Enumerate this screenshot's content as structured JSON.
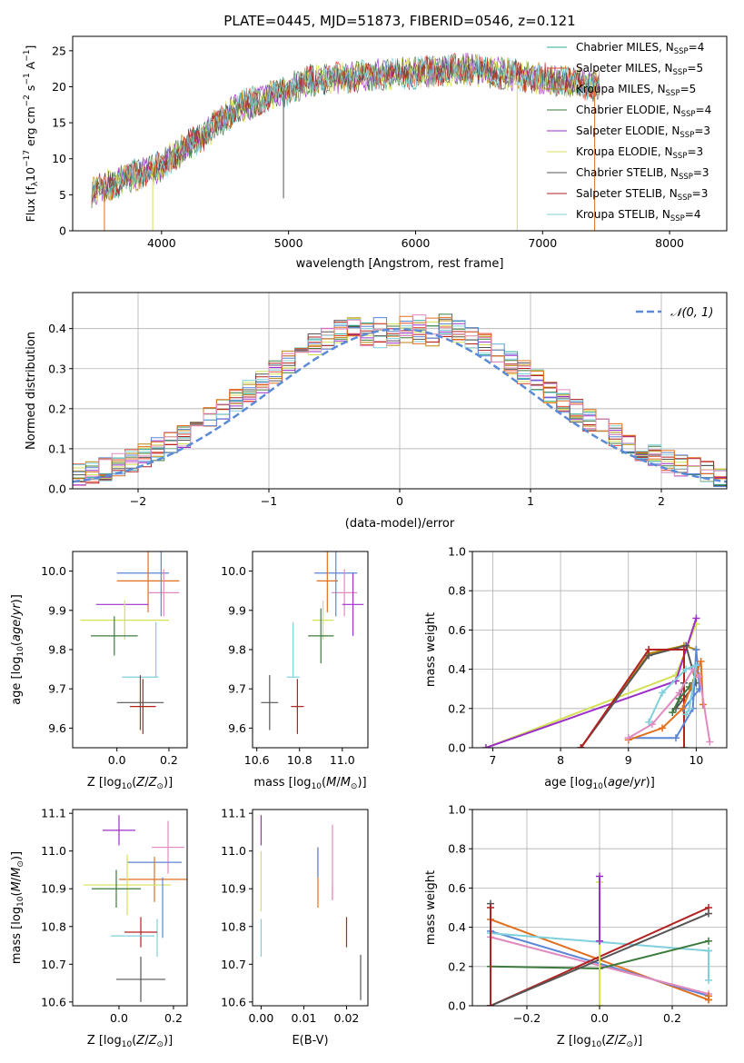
{
  "title": "PLATE=0445, MJD=51873, FIBERID=0546, z=0.121",
  "colors": {
    "chabrier_miles": "#2ca89a",
    "salpeter_miles": "#e24a33",
    "kroupa_miles": "#b8860b",
    "chabrier_elodie": "#3d7a3d",
    "salpeter_elodie": "#9b30c8",
    "kroupa_elodie": "#d4e157",
    "chabrier_stelib": "#555555",
    "salpeter_stelib": "#b22222",
    "kroupa_stelib": "#80d0dc",
    "c_blue": "#5b85d6",
    "c_orange": "#e07020",
    "c_pink": "#e08ac0",
    "c_green": "#3d7a3d",
    "c_purple": "#9b30c8",
    "c_yellow": "#d4e157",
    "c_grey": "#555555",
    "c_red": "#b22222",
    "c_cyan": "#80d0dc",
    "normal": "#5b8bd6"
  },
  "chart_data": [
    {
      "id": "spectrum",
      "type": "line",
      "xlabel": "wavelength [Angstrom, rest frame]",
      "ylabel": "Flux [f",
      "xlim": [
        3300,
        8450
      ],
      "ylim": [
        0,
        27
      ],
      "xticks": [
        4000,
        5000,
        6000,
        7000,
        8000
      ],
      "yticks": [
        0,
        5,
        10,
        15,
        20,
        25
      ],
      "x_range": [
        3450,
        7450
      ],
      "dips": [
        {
          "x": 3550,
          "ymin": 0.0
        },
        {
          "x": 3930,
          "ymin": 0.0
        },
        {
          "x": 4960,
          "ymin": 4.5
        },
        {
          "x": 6800,
          "ymin": 0.0
        },
        {
          "x": 7410,
          "ymin": 0.0
        }
      ],
      "legend_position": "top-right",
      "legend": [
        {
          "label": "Chabrier MILES, N",
          "n": "4",
          "color": "#2ca89a"
        },
        {
          "label": "Salpeter MILES, N",
          "n": "5",
          "color": "#e24a33"
        },
        {
          "label": "Kroupa MILES, N",
          "n": "5",
          "color": "#b8860b"
        },
        {
          "label": "Chabrier ELODIE, N",
          "n": "4",
          "color": "#3d7a3d"
        },
        {
          "label": "Salpeter ELODIE, N",
          "n": "3",
          "color": "#9b30c8"
        },
        {
          "label": "Kroupa ELODIE, N",
          "n": "3",
          "color": "#d4e157"
        },
        {
          "label": "Chabrier STELIB, N",
          "n": "3",
          "color": "#555555"
        },
        {
          "label": "Salpeter STELIB, N",
          "n": "3",
          "color": "#b22222"
        },
        {
          "label": "Kroupa STELIB, N",
          "n": "4",
          "color": "#80d0dc"
        }
      ],
      "legend_sub": "SSP"
    },
    {
      "id": "residuals",
      "type": "histogram",
      "xlabel": "(data-model)/error",
      "ylabel": "Normed distribution",
      "xlim": [
        -2.5,
        2.5
      ],
      "ylim": [
        0,
        0.49
      ],
      "xticks": [
        -2,
        -1,
        0,
        1,
        2
      ],
      "yticks": [
        0.0,
        0.1,
        0.2,
        0.3,
        0.4
      ],
      "grid": true,
      "bin_width": 0.1,
      "legend": "𝒩(0, 1)",
      "legend_position": "top-right"
    },
    {
      "id": "age_vs_Z",
      "type": "errorbar",
      "xlabel": "Z [log",
      "ylabel": "age  [log",
      "xlim": [
        -0.17,
        0.27
      ],
      "ylim": [
        9.55,
        10.05
      ],
      "xticks": [
        0.0,
        0.2
      ],
      "yticks": [
        9.6,
        9.7,
        9.8,
        9.9,
        10.0
      ],
      "points": [
        {
          "x": 0.1,
          "y": 9.995,
          "xe": 0.1,
          "ye": 0.0,
          "c": "#5b85d6"
        },
        {
          "x": 0.12,
          "y": 9.975,
          "xe": 0.12,
          "ye": 0.08,
          "c": "#e07020"
        },
        {
          "x": 0.18,
          "y": 9.945,
          "xe": 0.06,
          "ye": 0.06,
          "c": "#e08ac0"
        },
        {
          "x": 0.17,
          "y": 9.975,
          "xe": 0.0,
          "ye": 0.09,
          "c": "#5b85d6"
        },
        {
          "x": 0.02,
          "y": 9.915,
          "xe": 0.1,
          "ye": 0.0,
          "c": "#9b30c8"
        },
        {
          "x": 0.03,
          "y": 9.875,
          "xe": 0.17,
          "ye": 0.05,
          "c": "#d4e157"
        },
        {
          "x": -0.01,
          "y": 9.835,
          "xe": 0.09,
          "ye": 0.05,
          "c": "#3d7a3d"
        },
        {
          "x": 0.15,
          "y": 9.8,
          "xe": 0.0,
          "ye": 0.07,
          "c": "#80d0dc"
        },
        {
          "x": 0.09,
          "y": 9.73,
          "xe": 0.07,
          "ye": 0.0,
          "c": "#80d0dc"
        },
        {
          "x": 0.09,
          "y": 9.665,
          "xe": 0.09,
          "ye": 0.07,
          "c": "#555555"
        },
        {
          "x": 0.1,
          "y": 9.655,
          "xe": 0.05,
          "ye": 0.07,
          "c": "#b22222"
        }
      ]
    },
    {
      "id": "age_vs_mass",
      "type": "errorbar",
      "xlabel": "mass [log",
      "ylabel": "",
      "xlim": [
        10.58,
        11.12
      ],
      "ylim": [
        9.55,
        10.05
      ],
      "xticks": [
        10.6,
        10.8,
        11.0
      ],
      "yticks": [
        9.6,
        9.7,
        9.8,
        9.9,
        10.0
      ],
      "points": [
        {
          "x": 10.97,
          "y": 9.995,
          "xe": 0.1,
          "ye": 0.0,
          "c": "#5b85d6"
        },
        {
          "x": 10.93,
          "y": 9.975,
          "xe": 0.05,
          "ye": 0.08,
          "c": "#e07020"
        },
        {
          "x": 11.01,
          "y": 9.945,
          "xe": 0.06,
          "ye": 0.06,
          "c": "#e08ac0"
        },
        {
          "x": 10.97,
          "y": 9.975,
          "xe": 0.0,
          "ye": 0.09,
          "c": "#5b85d6"
        },
        {
          "x": 11.05,
          "y": 9.915,
          "xe": 0.05,
          "ye": 0.08,
          "c": "#9b30c8"
        },
        {
          "x": 10.91,
          "y": 9.875,
          "xe": 0.05,
          "ye": 0.05,
          "c": "#d4e157"
        },
        {
          "x": 10.9,
          "y": 9.835,
          "xe": 0.06,
          "ye": 0.07,
          "c": "#3d7a3d"
        },
        {
          "x": 10.77,
          "y": 9.8,
          "xe": 0.0,
          "ye": 0.07,
          "c": "#80d0dc"
        },
        {
          "x": 10.77,
          "y": 9.73,
          "xe": 0.03,
          "ye": 0.0,
          "c": "#80d0dc"
        },
        {
          "x": 10.66,
          "y": 9.665,
          "xe": 0.04,
          "ye": 0.07,
          "c": "#555555"
        },
        {
          "x": 10.79,
          "y": 9.655,
          "xe": 0.03,
          "ye": 0.07,
          "c": "#b22222"
        }
      ]
    },
    {
      "id": "mass_weight_vs_age",
      "type": "line",
      "xlabel": "age  [log",
      "ylabel": "mass weight",
      "xlim": [
        6.7,
        10.45
      ],
      "ylim": [
        0.0,
        1.0
      ],
      "xticks": [
        7,
        8,
        9,
        10
      ],
      "yticks": [
        0.0,
        0.2,
        0.4,
        0.6,
        0.8,
        1.0
      ],
      "grid": true,
      "series": [
        {
          "c": "#b8860b",
          "x": [
            8.3,
            9.3,
            9.82,
            10.0
          ],
          "y": [
            0.0,
            0.48,
            0.52,
            0.5
          ]
        },
        {
          "c": "#d4e157",
          "x": [
            6.9,
            9.7,
            10.0
          ],
          "y": [
            0.0,
            0.37,
            0.63
          ]
        },
        {
          "c": "#9b30c8",
          "x": [
            6.9,
            9.7,
            10.0
          ],
          "y": [
            0.0,
            0.34,
            0.66
          ]
        },
        {
          "c": "#555555",
          "x": [
            8.3,
            9.3,
            9.85,
            10.0,
            9.7,
            9.82
          ],
          "y": [
            0.0,
            0.47,
            0.52,
            0.33,
            0.2,
            0.33
          ]
        },
        {
          "c": "#b22222",
          "x": [
            8.3,
            9.3,
            9.82,
            9.82
          ],
          "y": [
            0.0,
            0.5,
            0.5,
            0.0
          ]
        },
        {
          "c": "#3d7a3d",
          "x": [
            9.65,
            9.75,
            9.9,
            9.95
          ],
          "y": [
            0.18,
            0.25,
            0.31,
            0.33
          ]
        },
        {
          "c": "#5b85d6",
          "x": [
            9.0,
            9.7,
            9.95,
            10.0,
            10.05,
            9.82
          ],
          "y": [
            0.05,
            0.05,
            0.2,
            0.5,
            0.3,
            0.2
          ]
        },
        {
          "c": "#e07020",
          "x": [
            9.0,
            9.5,
            9.8,
            10.0,
            10.07,
            10.1
          ],
          "y": [
            0.04,
            0.1,
            0.2,
            0.38,
            0.44,
            0.22
          ]
        },
        {
          "c": "#e08ac0",
          "x": [
            9.0,
            9.35,
            9.75,
            9.95,
            10.05,
            10.2
          ],
          "y": [
            0.05,
            0.12,
            0.28,
            0.4,
            0.36,
            0.03
          ]
        },
        {
          "c": "#80d0dc",
          "x": [
            9.3,
            9.5,
            9.85,
            10.0,
            9.9,
            9.85
          ],
          "y": [
            0.13,
            0.28,
            0.4,
            0.42,
            0.2,
            0.17
          ]
        }
      ]
    },
    {
      "id": "mass_vs_Z",
      "type": "errorbar",
      "xlabel": "Z [log",
      "ylabel": "mass [log",
      "xlim": [
        -0.17,
        0.25
      ],
      "ylim": [
        10.59,
        11.11
      ],
      "xticks": [
        0.0,
        0.2
      ],
      "yticks": [
        10.6,
        10.7,
        10.8,
        10.9,
        11.0,
        11.1
      ],
      "points": [
        {
          "x": 0.0,
          "y": 11.055,
          "xe": 0.06,
          "ye": 0.04,
          "c": "#9b30c8"
        },
        {
          "x": 0.18,
          "y": 11.01,
          "xe": 0.06,
          "ye": 0.07,
          "c": "#e08ac0"
        },
        {
          "x": 0.13,
          "y": 10.97,
          "xe": 0.1,
          "ye": 0.0,
          "c": "#5b85d6"
        },
        {
          "x": 0.13,
          "y": 10.925,
          "xe": 0.13,
          "ye": 0.06,
          "c": "#e07020"
        },
        {
          "x": 0.03,
          "y": 10.91,
          "xe": 0.16,
          "ye": 0.08,
          "c": "#d4e157"
        },
        {
          "x": -0.01,
          "y": 10.9,
          "xe": 0.09,
          "ye": 0.05,
          "c": "#3d7a3d"
        },
        {
          "x": 0.16,
          "y": 10.85,
          "xe": 0.0,
          "ye": 0.08,
          "c": "#5b85d6"
        },
        {
          "x": 0.14,
          "y": 10.77,
          "xe": 0.0,
          "ye": 0.05,
          "c": "#80d0dc"
        },
        {
          "x": 0.08,
          "y": 10.785,
          "xe": 0.06,
          "ye": 0.04,
          "c": "#b22222"
        },
        {
          "x": 0.05,
          "y": 10.775,
          "xe": 0.08,
          "ye": 0.0,
          "c": "#80d0dc"
        },
        {
          "x": 0.08,
          "y": 10.66,
          "xe": 0.09,
          "ye": 0.06,
          "c": "#555555"
        }
      ]
    },
    {
      "id": "mass_vs_ebv",
      "type": "errorbar",
      "xlabel": "E(B-V)",
      "ylabel": "",
      "xlim": [
        -0.002,
        0.025
      ],
      "ylim": [
        10.59,
        11.11
      ],
      "xticks": [
        0.0,
        0.01,
        0.02
      ],
      "yticks": [
        10.6,
        10.7,
        10.8,
        10.9,
        11.0,
        11.1
      ],
      "points": [
        {
          "x": 0.0,
          "y": 11.055,
          "xe": 0,
          "ye": 0.04,
          "c": "#9b30c8"
        },
        {
          "x": 0.0,
          "y": 10.92,
          "xe": 0,
          "ye": 0.08,
          "c": "#d4e157"
        },
        {
          "x": 0.0,
          "y": 10.77,
          "xe": 0,
          "ye": 0.05,
          "c": "#80d0dc"
        },
        {
          "x": 0.0133,
          "y": 10.93,
          "xe": 0,
          "ye": 0.08,
          "c": "#e07020"
        },
        {
          "x": 0.0133,
          "y": 10.97,
          "xe": 0,
          "ye": 0.04,
          "c": "#5b85d6"
        },
        {
          "x": 0.0167,
          "y": 10.97,
          "xe": 0,
          "ye": 0.1,
          "c": "#e08ac0"
        },
        {
          "x": 0.0167,
          "y": 10.89,
          "xe": 0,
          "ye": 0.02,
          "c": "#e08ac0"
        },
        {
          "x": 0.02,
          "y": 10.785,
          "xe": 0,
          "ye": 0.04,
          "c": "#b22222"
        },
        {
          "x": 0.0233,
          "y": 10.665,
          "xe": 0,
          "ye": 0.06,
          "c": "#555555"
        }
      ]
    },
    {
      "id": "mass_weight_vs_Z",
      "type": "line",
      "xlabel": "Z [log",
      "ylabel": "mass weight",
      "xlim": [
        -0.35,
        0.35
      ],
      "ylim": [
        0.0,
        1.0
      ],
      "xticks": [
        -0.2,
        0.0,
        0.2
      ],
      "yticks": [
        0.0,
        0.2,
        0.4,
        0.6,
        0.8,
        1.0
      ],
      "grid": true,
      "series": [
        {
          "c": "#e07020",
          "x": [
            -0.3,
            0.3
          ],
          "y": [
            0.44,
            0.03
          ]
        },
        {
          "c": "#5b85d6",
          "x": [
            -0.3,
            0.3
          ],
          "y": [
            0.38,
            0.05
          ]
        },
        {
          "c": "#e08ac0",
          "x": [
            -0.3,
            0.3
          ],
          "y": [
            0.35,
            0.06
          ]
        },
        {
          "c": "#80d0dc",
          "x": [
            -0.3,
            0.3
          ],
          "y": [
            0.37,
            0.28
          ]
        },
        {
          "c": "#3d7a3d",
          "x": [
            -0.3,
            0.0,
            0.3
          ],
          "y": [
            0.2,
            0.19,
            0.33
          ]
        },
        {
          "c": "#b22222",
          "x": [
            -0.3,
            0.3
          ],
          "y": [
            0.0,
            0.5
          ]
        },
        {
          "c": "#555555",
          "x": [
            -0.3,
            0.3
          ],
          "y": [
            0.0,
            0.47
          ]
        },
        {
          "c": "#d4e157",
          "x": [
            0.0,
            0.0
          ],
          "y": [
            0.0,
            0.63
          ]
        },
        {
          "c": "#9b30c8",
          "x": [
            0.0,
            0.0
          ],
          "y": [
            0.33,
            0.66
          ]
        },
        {
          "c": "#555555",
          "x": [
            -0.3,
            -0.3
          ],
          "y": [
            0.0,
            0.52
          ]
        },
        {
          "c": "#b22222",
          "x": [
            -0.3,
            -0.3
          ],
          "y": [
            0.0,
            0.5
          ]
        },
        {
          "c": "#e07020",
          "x": [
            0.3,
            0.3
          ],
          "y": [
            0.03,
            0.05
          ]
        },
        {
          "c": "#80d0dc",
          "x": [
            0.3,
            0.3
          ],
          "y": [
            0.13,
            0.28
          ]
        }
      ]
    }
  ],
  "axis_text": {
    "flux_ylabel_main": "Flux [f",
    "flux_ylabel_rest": "10",
    "unit_zsun": "(Z/Z",
    "unit_msun": "(M/M",
    "unit_age": "(age/yr)"
  }
}
